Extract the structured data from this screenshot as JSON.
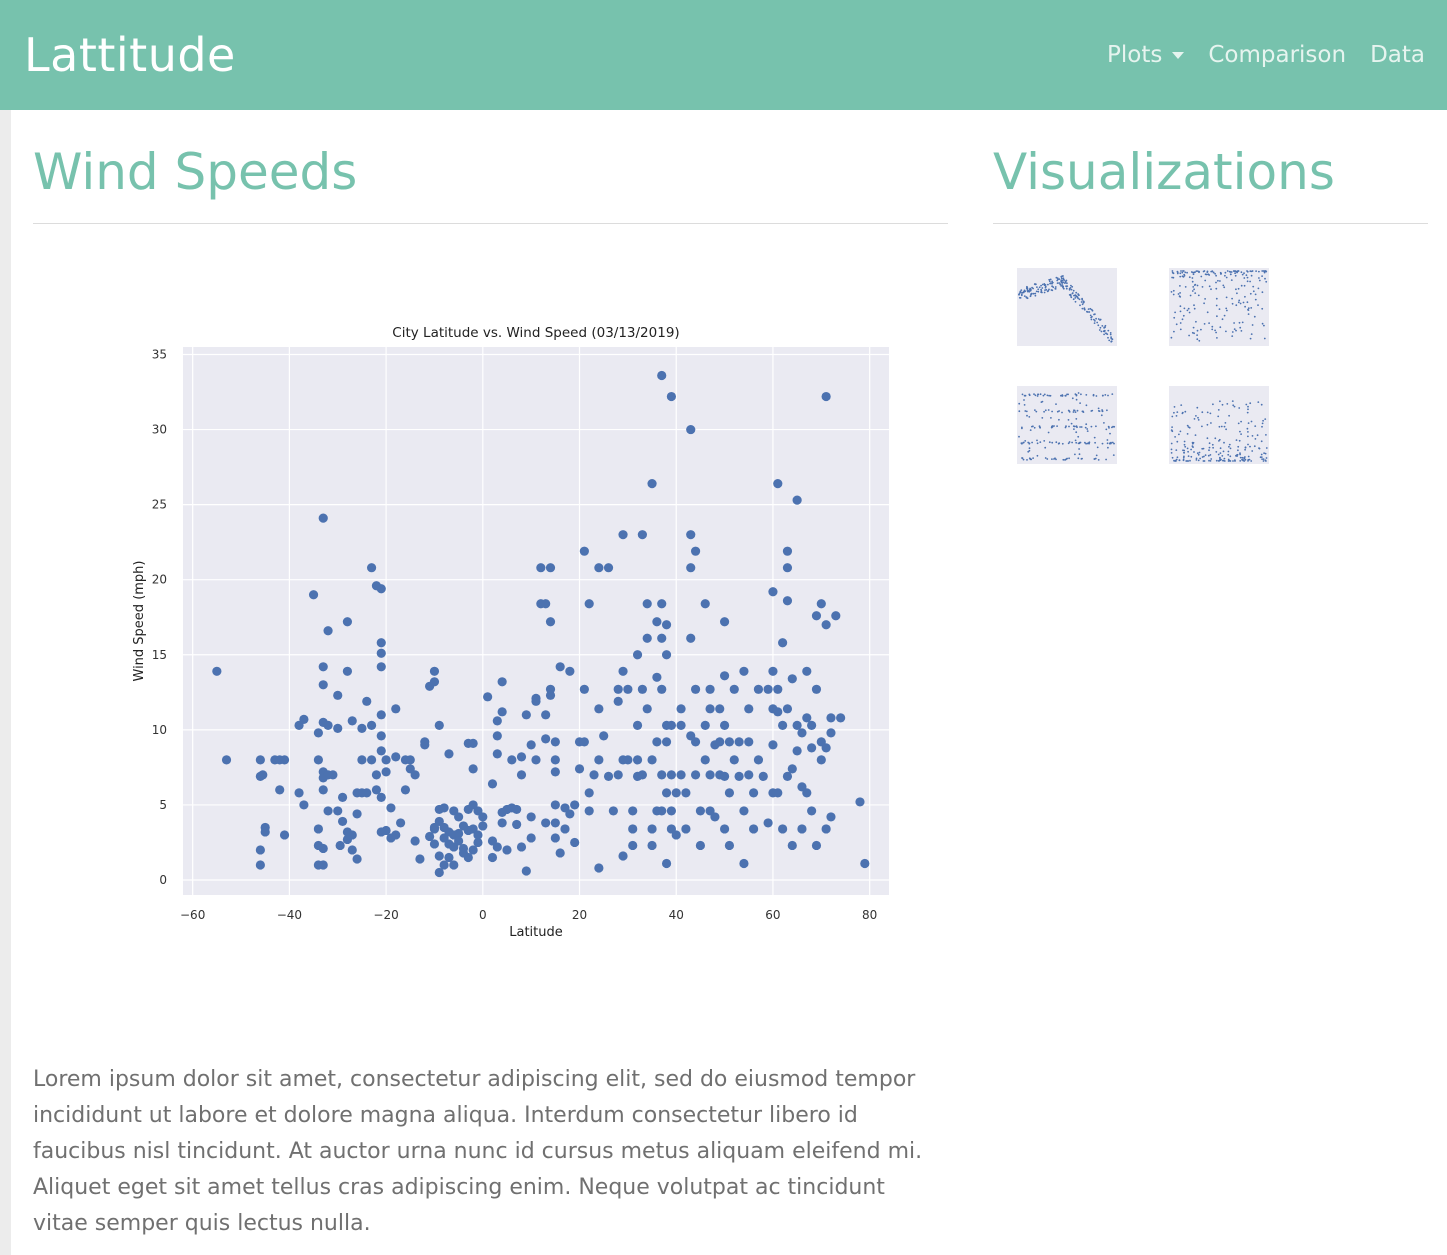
{
  "navbar": {
    "brand": "Lattitude",
    "links": [
      {
        "label": "Plots",
        "dropdown": true
      },
      {
        "label": "Comparison"
      },
      {
        "label": "Data"
      }
    ]
  },
  "main": {
    "title": "Wind Speeds",
    "paragraph": "Lorem ipsum dolor sit amet, consectetur adipiscing elit, sed do eiusmod tempor incididunt ut labore et dolore magna aliqua. Interdum consectetur libero id faucibus nisl tincidunt. At auctor urna nunc id cursus metus aliquam eleifend mi. Aliquet eget sit amet tellus cras adipiscing enim. Neque volutpat ac tincidunt vitae semper quis lectus nulla."
  },
  "sidebar": {
    "title": "Visualizations",
    "thumbnails": [
      {
        "name": "max-temperature",
        "pattern": "arch"
      },
      {
        "name": "humidity",
        "pattern": "top-dense"
      },
      {
        "name": "cloudiness",
        "pattern": "bands"
      },
      {
        "name": "wind-speed",
        "pattern": "low-dense"
      }
    ]
  },
  "colors": {
    "accent": "#77c2ad",
    "plot_bg": "#eaeaf2",
    "marker": "#4c72b0"
  },
  "chart_data": {
    "type": "scatter",
    "title": "City Latitude vs. Wind Speed (03/13/2019)",
    "xlabel": "Latitude",
    "ylabel": "Wind Speed (mph)",
    "xlim": [
      -62,
      84
    ],
    "ylim": [
      -1,
      35.5
    ],
    "xticks": [
      -60,
      -40,
      -20,
      0,
      20,
      40,
      60,
      80
    ],
    "yticks": [
      0,
      5,
      10,
      15,
      20,
      25,
      30,
      35
    ],
    "grid": true,
    "points": [
      [
        -55,
        13.9
      ],
      [
        -53,
        8.0
      ],
      [
        -46,
        8.0
      ],
      [
        -46,
        6.9
      ],
      [
        -45.5,
        7.0
      ],
      [
        -45,
        3.5
      ],
      [
        -45,
        3.2
      ],
      [
        -46,
        2.0
      ],
      [
        -46,
        1.0
      ],
      [
        -43,
        8.0
      ],
      [
        -42,
        8.0
      ],
      [
        -41,
        8.0
      ],
      [
        -42,
        6.0
      ],
      [
        -41,
        3.0
      ],
      [
        -38,
        10.3
      ],
      [
        -37,
        10.7
      ],
      [
        -38,
        5.8
      ],
      [
        -37,
        5.0
      ],
      [
        -35,
        19.0
      ],
      [
        -34,
        9.8
      ],
      [
        -34,
        8.0
      ],
      [
        -33,
        24.1
      ],
      [
        -33,
        14.2
      ],
      [
        -33,
        13.0
      ],
      [
        -33,
        10.5
      ],
      [
        -32,
        10.3
      ],
      [
        -32,
        16.6
      ],
      [
        -33,
        7.2
      ],
      [
        -33,
        6.8
      ],
      [
        -32,
        7.0
      ],
      [
        -33,
        6.0
      ],
      [
        -32,
        4.6
      ],
      [
        -31,
        7.0
      ],
      [
        -34,
        3.4
      ],
      [
        -34,
        2.3
      ],
      [
        -33,
        2.1
      ],
      [
        -34,
        1.0
      ],
      [
        -33,
        1.0
      ],
      [
        -30,
        12.3
      ],
      [
        -30,
        10.1
      ],
      [
        -30,
        4.6
      ],
      [
        -29,
        3.9
      ],
      [
        -29,
        5.5
      ],
      [
        -29.5,
        2.3
      ],
      [
        -28,
        3.2
      ],
      [
        -28,
        2.7
      ],
      [
        -28,
        17.2
      ],
      [
        -28,
        13.9
      ],
      [
        -27,
        10.6
      ],
      [
        -27,
        3.0
      ],
      [
        -27,
        2.0
      ],
      [
        -26,
        1.4
      ],
      [
        -26,
        5.8
      ],
      [
        -26,
        4.4
      ],
      [
        -25,
        10.1
      ],
      [
        -25,
        5.8
      ],
      [
        -25,
        8.0
      ],
      [
        -24,
        5.8
      ],
      [
        -24,
        11.9
      ],
      [
        -23,
        20.8
      ],
      [
        -23,
        10.3
      ],
      [
        -23,
        8.0
      ],
      [
        -22,
        19.6
      ],
      [
        -21,
        19.4
      ],
      [
        -21,
        15.8
      ],
      [
        -21,
        15.1
      ],
      [
        -21,
        14.2
      ],
      [
        -21,
        11.0
      ],
      [
        -21,
        9.6
      ],
      [
        -21,
        8.6
      ],
      [
        -22,
        7.0
      ],
      [
        -22,
        6.0
      ],
      [
        -21,
        5.5
      ],
      [
        -20,
        8.0
      ],
      [
        -20,
        7.2
      ],
      [
        -21,
        3.2
      ],
      [
        -20,
        3.3
      ],
      [
        -19,
        4.8
      ],
      [
        -19,
        2.8
      ],
      [
        -18,
        3.0
      ],
      [
        -18,
        8.2
      ],
      [
        -18,
        11.4
      ],
      [
        -17,
        3.8
      ],
      [
        -16,
        6.0
      ],
      [
        -16,
        8.0
      ],
      [
        -15,
        7.4
      ],
      [
        -15,
        8.0
      ],
      [
        -14,
        7.0
      ],
      [
        -14,
        2.6
      ],
      [
        -13,
        1.4
      ],
      [
        -12,
        9.0
      ],
      [
        -12,
        9.2
      ],
      [
        -11,
        12.9
      ],
      [
        -10,
        13.9
      ],
      [
        -10,
        13.2
      ],
      [
        -9,
        10.3
      ],
      [
        -9,
        3.9
      ],
      [
        -10,
        3.5
      ],
      [
        -9,
        4.7
      ],
      [
        -8,
        4.8
      ],
      [
        -8,
        2.8
      ],
      [
        -7,
        8.4
      ],
      [
        -7,
        3.2
      ],
      [
        -6,
        4.6
      ],
      [
        -6,
        1.0
      ],
      [
        -5,
        4.2
      ],
      [
        -5,
        3.1
      ],
      [
        -4,
        2.1
      ],
      [
        -3,
        9.1
      ],
      [
        -3,
        4.7
      ],
      [
        -2,
        9.1
      ],
      [
        -2,
        7.4
      ],
      [
        -2,
        5.0
      ],
      [
        -2,
        3.4
      ],
      [
        -1,
        2.5
      ],
      [
        -10,
        3.4
      ],
      [
        -11,
        2.9
      ],
      [
        -10,
        2.4
      ],
      [
        -9,
        1.6
      ],
      [
        -9,
        0.5
      ],
      [
        -8,
        1.0
      ],
      [
        -7,
        1.5
      ],
      [
        -8,
        3.5
      ],
      [
        -7,
        2.4
      ],
      [
        -6,
        3.0
      ],
      [
        -6,
        2.2
      ],
      [
        -5,
        2.6
      ],
      [
        -4,
        3.6
      ],
      [
        -3,
        1.5
      ],
      [
        -4,
        1.8
      ],
      [
        -3,
        3.3
      ],
      [
        -2,
        2.0
      ],
      [
        -1,
        3.0
      ],
      [
        0,
        4.2
      ],
      [
        0,
        3.6
      ],
      [
        -1,
        4.6
      ],
      [
        1,
        12.2
      ],
      [
        2,
        6.4
      ],
      [
        2,
        2.6
      ],
      [
        3,
        9.6
      ],
      [
        3,
        8.4
      ],
      [
        4,
        13.2
      ],
      [
        4,
        11.2
      ],
      [
        3,
        10.6
      ],
      [
        4,
        4.5
      ],
      [
        4,
        3.8
      ],
      [
        3,
        2.2
      ],
      [
        2,
        1.5
      ],
      [
        5,
        4.7
      ],
      [
        5,
        2.0
      ],
      [
        6,
        8.0
      ],
      [
        6,
        4.8
      ],
      [
        7,
        4.7
      ],
      [
        7,
        3.7
      ],
      [
        8,
        8.2
      ],
      [
        8,
        7.0
      ],
      [
        8,
        2.2
      ],
      [
        9,
        11.0
      ],
      [
        9,
        0.6
      ],
      [
        10,
        9.0
      ],
      [
        10,
        4.2
      ],
      [
        10,
        2.8
      ],
      [
        11,
        11.9
      ],
      [
        11,
        12.1
      ],
      [
        11,
        8.0
      ],
      [
        12,
        18.4
      ],
      [
        12,
        20.8
      ],
      [
        13,
        18.4
      ],
      [
        13,
        11.0
      ],
      [
        13,
        9.4
      ],
      [
        13,
        3.8
      ],
      [
        14,
        12.3
      ],
      [
        14,
        12.7
      ],
      [
        14,
        20.8
      ],
      [
        14,
        17.2
      ],
      [
        15,
        9.2
      ],
      [
        15,
        8.0
      ],
      [
        15,
        7.2
      ],
      [
        15,
        5.0
      ],
      [
        15,
        3.8
      ],
      [
        15,
        2.8
      ],
      [
        16,
        14.2
      ],
      [
        16,
        1.8
      ],
      [
        17,
        4.8
      ],
      [
        17,
        3.4
      ],
      [
        18,
        13.9
      ],
      [
        18,
        4.4
      ],
      [
        19,
        5.0
      ],
      [
        19,
        2.5
      ],
      [
        20,
        9.2
      ],
      [
        20,
        7.4
      ],
      [
        21,
        21.9
      ],
      [
        21,
        9.2
      ],
      [
        21,
        12.7
      ],
      [
        22,
        18.4
      ],
      [
        22,
        5.8
      ],
      [
        22,
        4.6
      ],
      [
        23,
        7.0
      ],
      [
        24,
        11.4
      ],
      [
        24,
        20.8
      ],
      [
        24,
        8.0
      ],
      [
        24,
        0.8
      ],
      [
        25,
        9.6
      ],
      [
        26,
        20.8
      ],
      [
        26,
        6.9
      ],
      [
        27,
        4.6
      ],
      [
        28,
        12.7
      ],
      [
        28,
        11.9
      ],
      [
        28,
        7.0
      ],
      [
        29,
        13.9
      ],
      [
        29,
        23.0
      ],
      [
        29,
        8.0
      ],
      [
        29,
        1.6
      ],
      [
        30,
        12.7
      ],
      [
        30,
        8.0
      ],
      [
        31,
        2.3
      ],
      [
        31,
        3.4
      ],
      [
        31,
        4.6
      ],
      [
        32,
        10.3
      ],
      [
        32,
        6.9
      ],
      [
        32,
        15.0
      ],
      [
        32,
        8.0
      ],
      [
        33,
        23.0
      ],
      [
        33,
        12.7
      ],
      [
        33,
        7.0
      ],
      [
        34,
        18.4
      ],
      [
        34,
        16.1
      ],
      [
        34,
        11.4
      ],
      [
        35,
        26.4
      ],
      [
        35,
        8.0
      ],
      [
        35,
        3.4
      ],
      [
        35,
        2.3
      ],
      [
        36,
        17.2
      ],
      [
        36,
        13.5
      ],
      [
        36,
        9.2
      ],
      [
        36,
        4.6
      ],
      [
        37,
        18.4
      ],
      [
        37,
        33.6
      ],
      [
        37,
        16.1
      ],
      [
        37,
        12.7
      ],
      [
        37,
        7.0
      ],
      [
        37,
        4.6
      ],
      [
        38,
        15.0
      ],
      [
        38,
        10.3
      ],
      [
        38,
        9.2
      ],
      [
        38,
        5.8
      ],
      [
        38,
        1.1
      ],
      [
        38,
        17.0
      ],
      [
        39,
        32.2
      ],
      [
        39,
        10.3
      ],
      [
        39,
        7.0
      ],
      [
        39,
        4.6
      ],
      [
        39,
        3.4
      ],
      [
        40,
        5.8
      ],
      [
        40,
        3.0
      ],
      [
        41,
        11.4
      ],
      [
        41,
        10.3
      ],
      [
        41,
        7.0
      ],
      [
        42,
        5.8
      ],
      [
        42,
        3.4
      ],
      [
        43,
        23.0
      ],
      [
        43,
        20.8
      ],
      [
        43,
        16.1
      ],
      [
        43,
        9.6
      ],
      [
        43,
        30.0
      ],
      [
        44,
        12.7
      ],
      [
        44,
        21.9
      ],
      [
        44,
        9.2
      ],
      [
        44,
        7.0
      ],
      [
        45,
        4.6
      ],
      [
        45,
        2.3
      ],
      [
        46,
        18.4
      ],
      [
        46,
        10.3
      ],
      [
        46,
        8.0
      ],
      [
        47,
        12.7
      ],
      [
        47,
        11.4
      ],
      [
        47,
        7.0
      ],
      [
        47,
        4.6
      ],
      [
        48,
        9.0
      ],
      [
        48,
        4.2
      ],
      [
        49,
        11.4
      ],
      [
        49,
        9.2
      ],
      [
        49,
        7.0
      ],
      [
        50,
        17.2
      ],
      [
        50,
        13.6
      ],
      [
        50,
        10.3
      ],
      [
        50,
        6.9
      ],
      [
        50,
        3.4
      ],
      [
        51,
        9.2
      ],
      [
        51,
        5.8
      ],
      [
        51,
        2.3
      ],
      [
        52,
        12.7
      ],
      [
        52,
        8.0
      ],
      [
        53,
        9.2
      ],
      [
        53,
        6.9
      ],
      [
        54,
        13.9
      ],
      [
        54,
        4.6
      ],
      [
        54,
        1.1
      ],
      [
        55,
        11.4
      ],
      [
        55,
        9.2
      ],
      [
        55,
        7.0
      ],
      [
        56,
        3.4
      ],
      [
        56,
        5.8
      ],
      [
        57,
        12.7
      ],
      [
        57,
        8.0
      ],
      [
        58,
        6.9
      ],
      [
        59,
        12.7
      ],
      [
        59,
        3.8
      ],
      [
        60,
        19.2
      ],
      [
        60,
        13.9
      ],
      [
        60,
        11.4
      ],
      [
        60,
        9.0
      ],
      [
        60,
        5.8
      ],
      [
        61,
        26.4
      ],
      [
        61,
        12.7
      ],
      [
        61,
        11.2
      ],
      [
        61,
        5.8
      ],
      [
        62,
        15.8
      ],
      [
        62,
        10.3
      ],
      [
        62,
        3.4
      ],
      [
        63,
        18.6
      ],
      [
        63,
        21.9
      ],
      [
        63,
        20.8
      ],
      [
        63,
        11.4
      ],
      [
        63,
        6.9
      ],
      [
        64,
        13.4
      ],
      [
        64,
        7.4
      ],
      [
        64,
        2.3
      ],
      [
        65,
        25.3
      ],
      [
        65,
        10.3
      ],
      [
        65,
        8.6
      ],
      [
        66,
        6.2
      ],
      [
        66,
        3.4
      ],
      [
        66,
        9.8
      ],
      [
        67,
        13.9
      ],
      [
        67,
        10.8
      ],
      [
        67,
        5.8
      ],
      [
        68,
        10.3
      ],
      [
        68,
        8.8
      ],
      [
        68,
        4.6
      ],
      [
        69,
        12.7
      ],
      [
        69,
        2.3
      ],
      [
        69,
        17.6
      ],
      [
        70,
        18.4
      ],
      [
        70,
        9.2
      ],
      [
        70,
        8.0
      ],
      [
        71,
        32.2
      ],
      [
        71,
        17.0
      ],
      [
        71,
        8.8
      ],
      [
        71,
        3.4
      ],
      [
        72,
        10.8
      ],
      [
        72,
        9.8
      ],
      [
        72,
        4.2
      ],
      [
        73,
        17.6
      ],
      [
        74,
        10.8
      ],
      [
        78,
        5.2
      ],
      [
        79,
        1.1
      ]
    ]
  }
}
